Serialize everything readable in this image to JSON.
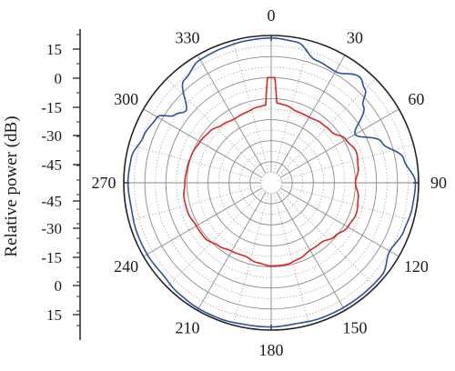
{
  "chart_data": {
    "type": "polar",
    "ylabel": "Relative power (dB)",
    "radial_tick_labels_upper": [
      "15",
      "0",
      "-15",
      "-30",
      "-45"
    ],
    "radial_tick_labels_lower": [
      "-45",
      "-30",
      "-15",
      "0",
      "15"
    ],
    "radial_range_db": [
      -50,
      20
    ],
    "radial_grid_step_db": 5,
    "angle_labels": [
      "0",
      "30",
      "60",
      "90",
      "120",
      "150",
      "180",
      "210",
      "240",
      "270",
      "300",
      "330"
    ],
    "angle_grid_step_deg": 15,
    "grid": true,
    "series": [
      {
        "color": "#2c4f9e",
        "angles": [
          0,
          10,
          20,
          30,
          40,
          45,
          50,
          60,
          70,
          80,
          90,
          100,
          110,
          120,
          130,
          140,
          150,
          160,
          170,
          180,
          190,
          200,
          210,
          220,
          230,
          240,
          250,
          260,
          270,
          280,
          290,
          300,
          305,
          310,
          320,
          330,
          340,
          350,
          360
        ],
        "values_db": [
          18.8,
          18.0,
          12.0,
          11.0,
          15.5,
          13.0,
          7.0,
          -4.0,
          6.0,
          14.0,
          18.5,
          18.0,
          17.0,
          15.0,
          18.5,
          18.5,
          18.5,
          18.5,
          18.0,
          18.5,
          18.5,
          19.0,
          19.0,
          18.5,
          17.5,
          18.0,
          18.0,
          17.5,
          18.0,
          17.5,
          14.5,
          12.5,
          6.0,
          3.0,
          14.0,
          17.5,
          18.0,
          18.5,
          18.8
        ]
      },
      {
        "color": "#e02424",
        "angles": [
          0,
          2,
          4,
          10,
          20,
          30,
          40,
          50,
          60,
          70,
          80,
          90,
          100,
          110,
          120,
          130,
          140,
          150,
          160,
          170,
          180,
          190,
          200,
          210,
          220,
          230,
          240,
          250,
          260,
          270,
          280,
          290,
          300,
          310,
          320,
          330,
          340,
          350,
          356,
          358,
          360
        ],
        "values_db": [
          0,
          0,
          -12,
          -12.5,
          -14,
          -14,
          -13,
          -12.5,
          -9,
          -7,
          -8,
          -10,
          -8,
          -7,
          -8,
          -10.5,
          -13,
          -13,
          -11.5,
          -10.5,
          -10.5,
          -11.5,
          -13,
          -12.5,
          -11,
          -9,
          -9,
          -8,
          -8,
          -9,
          -9.5,
          -10,
          -11,
          -12,
          -14,
          -15,
          -14.5,
          -13.5,
          -13,
          0,
          0
        ]
      }
    ]
  }
}
